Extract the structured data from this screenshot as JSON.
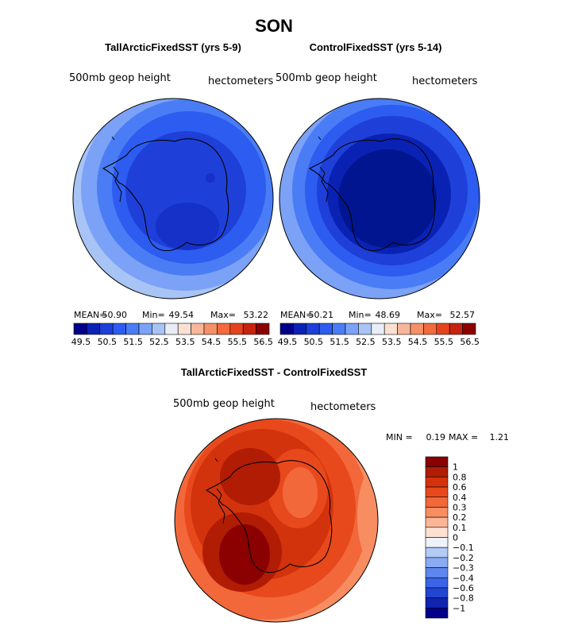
{
  "figure_title": "SON",
  "chart_data": [
    {
      "type": "heatmap",
      "projection": "south polar stereographic",
      "title": "TallArcticFixedSST (yrs 5-9)",
      "field_label": "500mb geop height",
      "units": "hectometers",
      "stats": {
        "mean_label": "MEAN=",
        "mean": "50.90",
        "min_label": "Min=",
        "min": "49.54",
        "max_label": "Max=",
        "max": "53.22"
      },
      "colorbar": {
        "levels": [
          49.5,
          50,
          50.5,
          51,
          51.5,
          52,
          52.5,
          53,
          53.5,
          54,
          54.5,
          55,
          55.5,
          56,
          56.5
        ],
        "tick_labels": [
          "49.5",
          "50.5",
          "51.5",
          "52.5",
          "53.5",
          "54.5",
          "55.5",
          "56.5"
        ],
        "colors": [
          "#00008b",
          "#0a22b4",
          "#1e40d8",
          "#2d5cf0",
          "#4a7cf5",
          "#7ba2f7",
          "#a8c4f5",
          "#e8edf8",
          "#fce1d3",
          "#f8b79a",
          "#f69068",
          "#f26a3e",
          "#e5431d",
          "#c62410",
          "#8b0000"
        ]
      }
    },
    {
      "type": "heatmap",
      "projection": "south polar stereographic",
      "title": "ControlFixedSST (yrs 5-14)",
      "field_label": "500mb geop height",
      "units": "hectometers",
      "stats": {
        "mean_label": "MEAN=",
        "mean": "50.21",
        "min_label": "Min=",
        "min": "48.69",
        "max_label": "Max=",
        "max": "52.57"
      },
      "colorbar": {
        "levels": [
          49.5,
          50,
          50.5,
          51,
          51.5,
          52,
          52.5,
          53,
          53.5,
          54,
          54.5,
          55,
          55.5,
          56,
          56.5
        ],
        "tick_labels": [
          "49.5",
          "50.5",
          "51.5",
          "52.5",
          "53.5",
          "54.5",
          "55.5",
          "56.5"
        ],
        "colors": [
          "#00008b",
          "#0a22b4",
          "#1e40d8",
          "#2d5cf0",
          "#4a7cf5",
          "#7ba2f7",
          "#a8c4f5",
          "#e8edf8",
          "#fce1d3",
          "#f8b79a",
          "#f69068",
          "#f26a3e",
          "#e5431d",
          "#c62410",
          "#8b0000"
        ]
      }
    },
    {
      "type": "heatmap",
      "projection": "south polar stereographic",
      "title": "TallArcticFixedSST - ControlFixedSST",
      "field_label": "500mb geop height",
      "units": "hectometers",
      "stats": {
        "min_label": "MIN =",
        "min": "0.19",
        "max_label": "MAX =",
        "max": "1.21"
      },
      "colorbar": {
        "tick_labels": [
          "1",
          "0.8",
          "0.6",
          "0.4",
          "0.3",
          "0.2",
          "0.1",
          "0",
          "−0.1",
          "−0.2",
          "−0.3",
          "−0.4",
          "−0.6",
          "−0.8",
          "−1"
        ],
        "colors": [
          "#8b0000",
          "#b11c04",
          "#d2330c",
          "#e8491c",
          "#f2683a",
          "#f88d62",
          "#fbb696",
          "#fde2d4",
          "#eef3fb",
          "#b4cbf6",
          "#8aaaf3",
          "#5e86ef",
          "#3c64e8",
          "#2244d2",
          "#1024b0",
          "#00008b"
        ]
      }
    }
  ],
  "colors": {
    "d0": "#8b0000",
    "d1": "#b11c04",
    "d2": "#d2330c",
    "d3": "#e8491c",
    "d4": "#f2683a",
    "d5": "#f88d62",
    "l1": "#a8c4f5",
    "l2": "#7ba2f7",
    "l3": "#4a7cf5",
    "l4": "#2d5cf0",
    "l5": "#1e40d8",
    "l6": "#0a22b4",
    "l7": "#00008b",
    "pale": "#fce1d3"
  }
}
